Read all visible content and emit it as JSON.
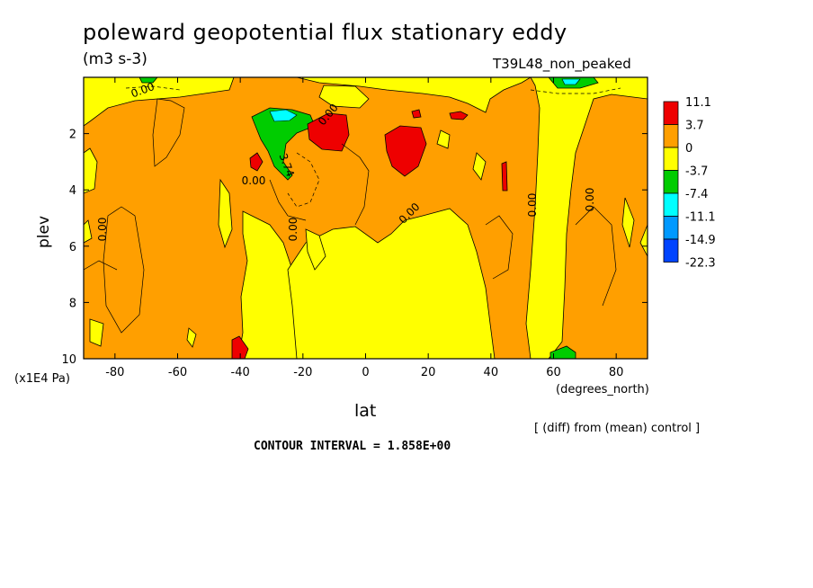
{
  "chart_data": {
    "type": "heatmap",
    "title": "poleward geopotential flux stationary eddy",
    "units": "(m3 s-3)",
    "run_label": "T39L48_non_peaked",
    "xlabel": "lat",
    "x_units": "(degrees_north)",
    "ylabel": "plev",
    "y_units": "(x1E4 Pa)",
    "xlim": [
      -90,
      90
    ],
    "ylim": [
      10,
      0
    ],
    "x_ticks": [
      -80,
      -60,
      -40,
      -20,
      0,
      20,
      40,
      60,
      80
    ],
    "y_ticks": [
      2,
      4,
      6,
      8,
      10
    ],
    "colorbar": {
      "labels": [
        "11.1",
        "3.7",
        "0",
        "-3.7",
        "-7.4",
        "-11.1",
        "-14.9",
        "-22.3"
      ],
      "colors": [
        "#ee0000",
        "#ff9f00",
        "#ffff00",
        "#00cc00",
        "#00ffff",
        "#0099ff",
        "#0044ff"
      ]
    },
    "contour_labels": [
      "0.00",
      "0.00",
      "0.00",
      "0.00",
      "0.00",
      "0.00",
      "0.00",
      "3.74",
      "0.00"
    ],
    "note": "[ (diff) from (mean) control ]",
    "contour_interval": "CONTOUR INTERVAL = 1.858E+00",
    "grid": false
  }
}
